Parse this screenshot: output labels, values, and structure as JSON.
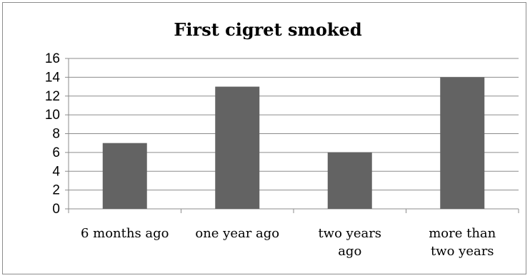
{
  "chart_data": {
    "type": "bar",
    "title": "First cigret smoked",
    "categories": [
      "6 months ago",
      "one year ago",
      "two years ago",
      "more than two years"
    ],
    "category_lines": [
      [
        "6 months ago"
      ],
      [
        "one year ago"
      ],
      [
        "two years",
        "ago"
      ],
      [
        "more than",
        "two years"
      ]
    ],
    "values": [
      7,
      13,
      6,
      14
    ],
    "ylim": [
      0,
      16
    ],
    "yticks": [
      0,
      2,
      4,
      6,
      8,
      10,
      12,
      14,
      16
    ],
    "xlabel": "",
    "ylabel": "",
    "grid": true,
    "legend": "none",
    "bar_color": "#636363",
    "grid_color": "#8c8c8c"
  }
}
